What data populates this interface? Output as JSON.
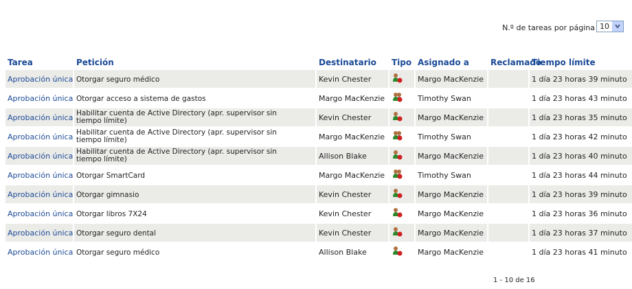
{
  "page_size": {
    "label": "N.º de tareas por página",
    "value": "10"
  },
  "table": {
    "headers": [
      "Tarea",
      "Petición",
      "Destinatario",
      "Tipo",
      "Asignado a",
      "Reclamado",
      "Tiempo límite"
    ],
    "rows": [
      {
        "tarea": "Aprobación única",
        "peticion": "Otorgar seguro médico",
        "destinatario": "Kevin Chester",
        "asignado": "Margo MacKenzie",
        "tiempo": "1 día 23 horas 39 minuto"
      },
      {
        "tarea": "Aprobación única",
        "peticion": "Otorgar acceso a sistema de gastos",
        "destinatario": "Margo MacKenzie",
        "asignado": "Timothy Swan",
        "tiempo": "1 día 23 horas 43 minuto"
      },
      {
        "tarea": "Aprobación única",
        "peticion": "Habilitar cuenta de Active Directory (apr. supervisor sin tiempo límite)",
        "destinatario": "Kevin Chester",
        "asignado": "Margo MacKenzie",
        "tiempo": "1 día 23 horas 35 minuto"
      },
      {
        "tarea": "Aprobación única",
        "peticion": "Habilitar cuenta de Active Directory (apr. supervisor sin tiempo límite)",
        "destinatario": "Margo MacKenzie",
        "asignado": "Timothy Swan",
        "tiempo": "1 día 23 horas 42 minuto"
      },
      {
        "tarea": "Aprobación única",
        "peticion": "Habilitar cuenta de Active Directory (apr. supervisor sin tiempo límite)",
        "destinatario": "Allison Blake",
        "asignado": "Margo MacKenzie",
        "tiempo": "1 día 23 horas 40 minuto"
      },
      {
        "tarea": "Aprobación única",
        "peticion": "Otorgar SmartCard",
        "destinatario": "Margo MacKenzie",
        "asignado": "Timothy Swan",
        "tiempo": "1 día 23 horas 44 minuto"
      },
      {
        "tarea": "Aprobación única",
        "peticion": "Otorgar gimnasio",
        "destinatario": "Kevin Chester",
        "asignado": "Margo MacKenzie",
        "tiempo": "1 día 23 horas 39 minuto"
      },
      {
        "tarea": "Aprobación única",
        "peticion": "Otorgar libros 7X24",
        "destinatario": "Kevin Chester",
        "asignado": "Margo MacKenzie",
        "tiempo": "1 día 23 horas 36 minuto"
      },
      {
        "tarea": "Aprobación única",
        "peticion": "Otorgar seguro dental",
        "destinatario": "Kevin Chester",
        "asignado": "Margo MacKenzie",
        "tiempo": "1 día 23 horas 37 minuto"
      },
      {
        "tarea": "Aprobación única",
        "peticion": "Otorgar seguro médico",
        "destinatario": "Allison Blake",
        "asignado": "Margo MacKenzie",
        "tiempo": "1 día 23 horas 41 minuto"
      }
    ]
  },
  "pagination": "1 - 10 de 16"
}
